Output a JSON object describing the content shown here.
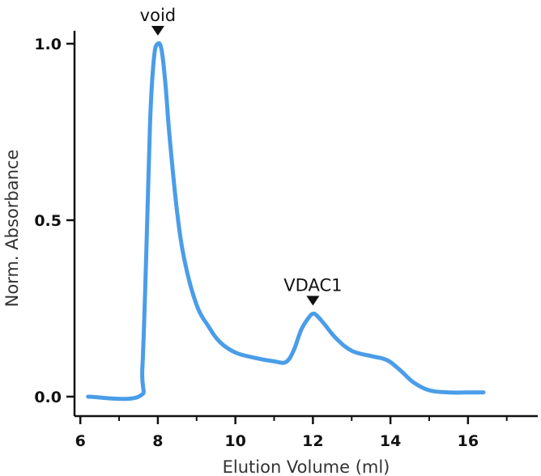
{
  "chart_data": {
    "type": "line",
    "title": "",
    "xlabel": "Elution Volume (ml)",
    "ylabel": "Norm. Absorbance",
    "xlim": [
      5.85,
      17.8
    ],
    "ylim": [
      0.0,
      1.0
    ],
    "x_ticks": [
      6,
      8,
      10,
      12,
      14,
      16
    ],
    "x_minor_ticks": [
      7,
      9,
      11,
      13,
      15,
      17
    ],
    "y_ticks": [
      0.0,
      0.5,
      1.0
    ],
    "y_tick_labels": [
      "0.0",
      "0.5",
      "1.0"
    ],
    "x_tick_labels": [
      "6",
      "8",
      "10",
      "12",
      "14",
      "16"
    ],
    "grid": false,
    "legend": "none",
    "line_color": "#4a9de8",
    "series": [
      {
        "x": [
          6.2,
          7.5,
          7.6,
          7.7,
          7.8,
          7.9,
          8.0,
          8.1,
          8.2,
          8.3,
          8.5,
          8.7,
          9.0,
          9.3,
          9.6,
          10.0,
          10.5,
          11.0,
          11.3,
          11.5,
          11.7,
          11.9,
          12.0,
          12.1,
          12.3,
          12.6,
          13.0,
          13.5,
          13.8,
          14.0,
          14.3,
          14.6,
          15.0,
          15.5,
          16.0,
          16.4
        ],
        "y": [
          0.0,
          0.0,
          0.08,
          0.4,
          0.78,
          0.96,
          1.0,
          0.98,
          0.88,
          0.74,
          0.52,
          0.38,
          0.26,
          0.2,
          0.155,
          0.125,
          0.11,
          0.1,
          0.098,
          0.13,
          0.19,
          0.225,
          0.235,
          0.23,
          0.205,
          0.165,
          0.13,
          0.115,
          0.108,
          0.098,
          0.07,
          0.04,
          0.018,
          0.012,
          0.012,
          0.012
        ]
      }
    ],
    "annotations": [
      {
        "text": "void",
        "x": 8.0,
        "y": 1.0
      },
      {
        "text": "VDAC1",
        "x": 12.0,
        "y": 0.235
      }
    ]
  }
}
